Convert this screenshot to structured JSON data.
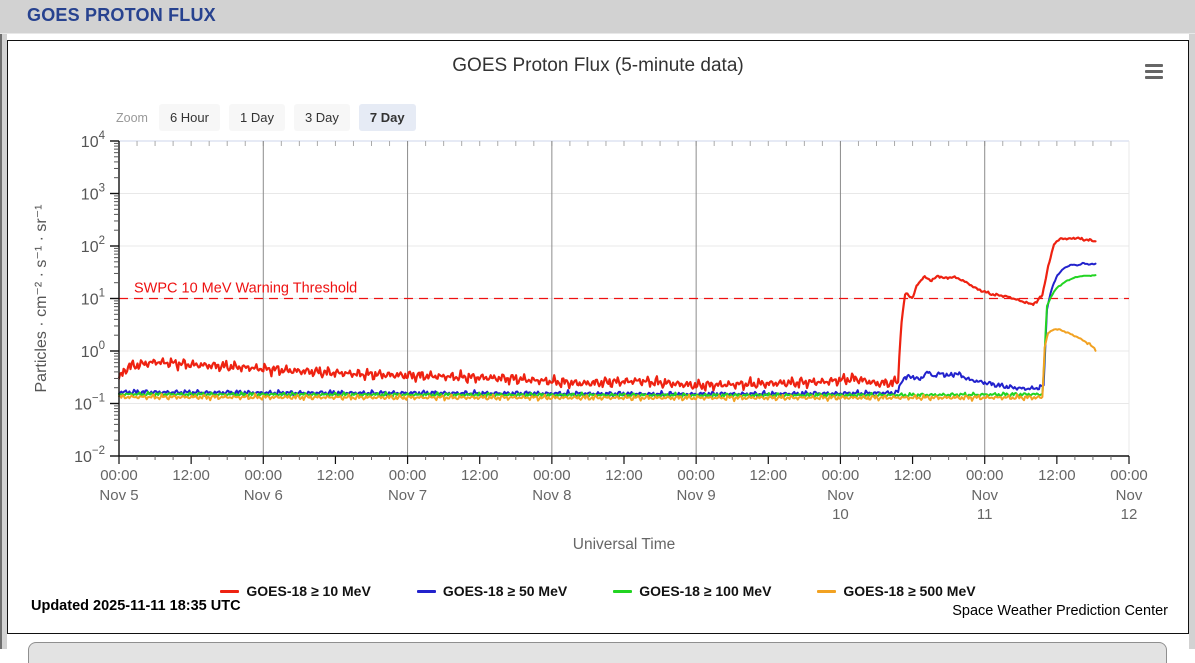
{
  "header": {
    "title": "GOES PROTON FLUX"
  },
  "zoom": {
    "label": "Zoom",
    "options": [
      "6 Hour",
      "1 Day",
      "3 Day",
      "7 Day"
    ],
    "selected": "7 Day"
  },
  "icons": {
    "menu": "hamburger-menu"
  },
  "footer": {
    "updated": "Updated 2025-11-11 18:35 UTC",
    "credit": "Space Weather Prediction Center"
  },
  "chart_data": {
    "type": "line",
    "title": "GOES Proton Flux (5-minute data)",
    "xlabel": "Universal Time",
    "ylabel": "Particles · cm⁻² · s⁻¹ · sr⁻¹",
    "y_scale": "log",
    "ylog_exponents": [
      -2,
      4
    ],
    "x_days": 7,
    "x_range": [
      "Nov 5 00:00 UTC",
      "Nov 12 00:00 UTC"
    ],
    "data_end_day": 6.774,
    "grid": true,
    "legend_position": "bottom",
    "x_time_labels": [
      "00:00",
      "12:00",
      "00:00",
      "12:00",
      "00:00",
      "12:00",
      "00:00",
      "12:00",
      "00:00",
      "12:00",
      "00:00",
      "12:00",
      "00:00",
      "12:00",
      "00:00"
    ],
    "day_labels": [
      "Nov 5",
      "Nov 6",
      "Nov 7",
      "Nov 8",
      "Nov 9",
      "Nov\n10",
      "Nov\n11",
      "Nov\n12"
    ],
    "threshold": {
      "value": 10,
      "label": "SWPC 10 MeV Warning Threshold",
      "color": "#ee1111"
    },
    "series": [
      {
        "name": "GOES-18 ≥ 10 MeV",
        "color": "#ee2211",
        "width": 2.2,
        "noise": 0.105,
        "keypoints": [
          [
            0,
            0.3
          ],
          [
            0.06,
            0.5
          ],
          [
            0.25,
            0.62
          ],
          [
            0.5,
            0.55
          ],
          [
            0.8,
            0.5
          ],
          [
            1.2,
            0.42
          ],
          [
            1.7,
            0.36
          ],
          [
            2.2,
            0.33
          ],
          [
            2.7,
            0.3
          ],
          [
            3.2,
            0.24
          ],
          [
            3.6,
            0.27
          ],
          [
            4.0,
            0.22
          ],
          [
            4.5,
            0.24
          ],
          [
            4.9,
            0.26
          ],
          [
            5.1,
            0.3
          ],
          [
            5.25,
            0.24
          ],
          [
            5.38,
            0.25
          ],
          [
            5.4,
            0.28
          ],
          [
            5.42,
            3
          ],
          [
            5.45,
            13
          ],
          [
            5.5,
            10
          ],
          [
            5.53,
            18
          ],
          [
            5.58,
            26
          ],
          [
            5.63,
            22
          ],
          [
            5.68,
            27
          ],
          [
            5.73,
            24
          ],
          [
            5.78,
            26
          ],
          [
            5.85,
            22
          ],
          [
            5.95,
            15
          ],
          [
            6.05,
            12
          ],
          [
            6.15,
            11
          ],
          [
            6.25,
            9
          ],
          [
            6.32,
            7.8
          ],
          [
            6.36,
            8.5
          ],
          [
            6.4,
            12
          ],
          [
            6.44,
            40
          ],
          [
            6.48,
            110
          ],
          [
            6.53,
            140
          ],
          [
            6.58,
            136
          ],
          [
            6.63,
            143
          ],
          [
            6.68,
            134
          ],
          [
            6.72,
            130
          ],
          [
            6.774,
            122
          ]
        ]
      },
      {
        "name": "GOES-18 ≥ 50 MeV",
        "color": "#2222cc",
        "width": 2,
        "noise": 0.05,
        "keypoints": [
          [
            0,
            0.165
          ],
          [
            1,
            0.16
          ],
          [
            2,
            0.158
          ],
          [
            3,
            0.155
          ],
          [
            4,
            0.15
          ],
          [
            5,
            0.155
          ],
          [
            5.38,
            0.16
          ],
          [
            5.4,
            0.17
          ],
          [
            5.43,
            0.3
          ],
          [
            5.5,
            0.33
          ],
          [
            5.55,
            0.28
          ],
          [
            5.6,
            0.4
          ],
          [
            5.65,
            0.33
          ],
          [
            5.7,
            0.38
          ],
          [
            5.75,
            0.33
          ],
          [
            5.8,
            0.38
          ],
          [
            5.9,
            0.28
          ],
          [
            6.0,
            0.25
          ],
          [
            6.1,
            0.22
          ],
          [
            6.2,
            0.2
          ],
          [
            6.3,
            0.19
          ],
          [
            6.38,
            0.2
          ],
          [
            6.41,
            0.22
          ],
          [
            6.43,
            6
          ],
          [
            6.46,
            14
          ],
          [
            6.5,
            27
          ],
          [
            6.55,
            38
          ],
          [
            6.6,
            44
          ],
          [
            6.65,
            43
          ],
          [
            6.68,
            47
          ],
          [
            6.72,
            45
          ],
          [
            6.774,
            45
          ]
        ]
      },
      {
        "name": "GOES-18 ≥ 100 MeV",
        "color": "#22d422",
        "width": 2,
        "noise": 0.04,
        "keypoints": [
          [
            0,
            0.15
          ],
          [
            2,
            0.147
          ],
          [
            4,
            0.143
          ],
          [
            5.5,
            0.145
          ],
          [
            6.4,
            0.15
          ],
          [
            6.415,
            0.8
          ],
          [
            6.43,
            7
          ],
          [
            6.46,
            11
          ],
          [
            6.5,
            16
          ],
          [
            6.56,
            21
          ],
          [
            6.62,
            25
          ],
          [
            6.68,
            27
          ],
          [
            6.72,
            27
          ],
          [
            6.774,
            28
          ]
        ]
      },
      {
        "name": "GOES-18 ≥ 500 MeV",
        "color": "#f2a222",
        "width": 2,
        "noise": 0.05,
        "keypoints": [
          [
            0,
            0.133
          ],
          [
            2,
            0.13
          ],
          [
            4,
            0.128
          ],
          [
            6.4,
            0.13
          ],
          [
            6.415,
            1.2
          ],
          [
            6.44,
            2.2
          ],
          [
            6.48,
            2.6
          ],
          [
            6.52,
            2.55
          ],
          [
            6.58,
            2.2
          ],
          [
            6.64,
            1.85
          ],
          [
            6.7,
            1.5
          ],
          [
            6.74,
            1.25
          ],
          [
            6.774,
            1.05
          ]
        ]
      }
    ]
  }
}
